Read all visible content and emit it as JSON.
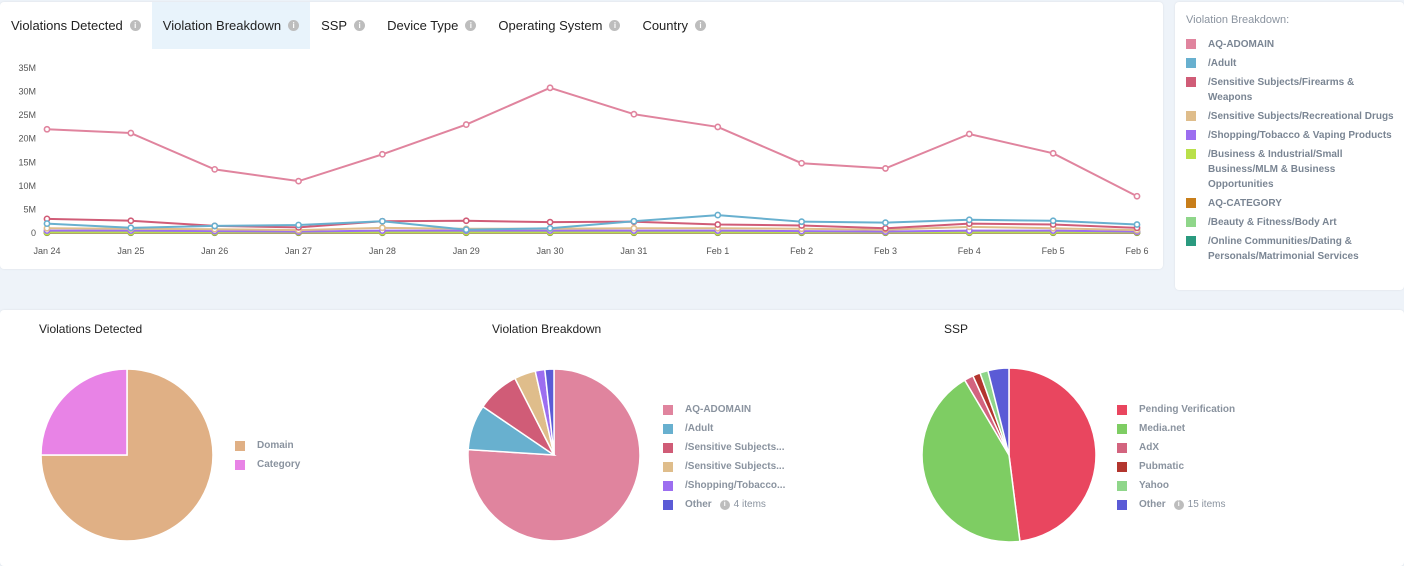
{
  "tabs": [
    {
      "label": "Violations Detected"
    },
    {
      "label": "Violation Breakdown"
    },
    {
      "label": "SSP"
    },
    {
      "label": "Device Type"
    },
    {
      "label": "Operating System"
    },
    {
      "label": "Country"
    }
  ],
  "legend": {
    "title": "Violation Breakdown:",
    "items": [
      {
        "label": "AQ-ADOMAIN",
        "color": "#e0849e"
      },
      {
        "label": "/Adult",
        "color": "#68b0cf"
      },
      {
        "label": "/Sensitive Subjects/Firearms & Weapons",
        "color": "#d05c77"
      },
      {
        "label": "/Sensitive Subjects/Recreational Drugs",
        "color": "#dfbd8b"
      },
      {
        "label": "/Shopping/Tobacco & Vaping Products",
        "color": "#9c6ef0"
      },
      {
        "label": "/Business & Industrial/Small Business/MLM & Business Opportunities",
        "color": "#b9e04a"
      },
      {
        "label": "AQ-CATEGORY",
        "color": "#c87e1a"
      },
      {
        "label": "/Beauty & Fitness/Body Art",
        "color": "#8fd68a"
      },
      {
        "label": "/Online Communities/Dating & Personals/Matrimonial Services",
        "color": "#2a9a7f"
      }
    ]
  },
  "chart_data": [
    {
      "type": "line",
      "x": [
        "Jan 24",
        "Jan 25",
        "Jan 26",
        "Jan 27",
        "Jan 28",
        "Jan 29",
        "Jan 30",
        "Jan 31",
        "Feb 1",
        "Feb 2",
        "Feb 3",
        "Feb 4",
        "Feb 5",
        "Feb 6"
      ],
      "ylim": [
        0,
        35000000
      ],
      "yticks": [
        "0",
        "5M",
        "10M",
        "15M",
        "20M",
        "25M",
        "30M",
        "35M"
      ],
      "grid": false,
      "legend": "right",
      "series": [
        {
          "name": "AQ-ADOMAIN",
          "color": "#e0849e",
          "values": [
            22000000,
            21200000,
            13500000,
            11000000,
            16700000,
            23000000,
            30800000,
            25200000,
            22500000,
            14800000,
            13700000,
            21000000,
            16900000,
            7800000
          ]
        },
        {
          "name": "/Adult",
          "color": "#68b0cf",
          "values": [
            2000000,
            1100000,
            1500000,
            1700000,
            2500000,
            700000,
            1000000,
            2500000,
            3800000,
            2400000,
            2200000,
            2800000,
            2600000,
            1800000
          ]
        },
        {
          "name": "/Sensitive Subjects/Firearms & Weapons",
          "color": "#d05c77",
          "values": [
            3000000,
            2600000,
            1500000,
            1200000,
            2500000,
            2600000,
            2300000,
            2400000,
            1800000,
            1600000,
            1000000,
            2000000,
            1800000,
            1100000
          ]
        },
        {
          "name": "/Sensitive Subjects/Recreational Drugs",
          "color": "#dfbd8b",
          "values": [
            1000000,
            900000,
            800000,
            600000,
            1100000,
            900000,
            900000,
            1000000,
            1000000,
            900000,
            700000,
            1300000,
            1000000,
            600000
          ]
        },
        {
          "name": "/Shopping/Tobacco & Vaping Products",
          "color": "#9c6ef0",
          "values": [
            500000,
            500000,
            400000,
            300000,
            500000,
            500000,
            500000,
            500000,
            500000,
            400000,
            300000,
            500000,
            500000,
            300000
          ]
        },
        {
          "name": "/Business & Industrial/Small Business/MLM & Business Opportunities",
          "color": "#b9e04a",
          "values": [
            200000,
            200000,
            200000,
            200000,
            200000,
            200000,
            200000,
            200000,
            200000,
            200000,
            200000,
            200000,
            200000,
            200000
          ]
        },
        {
          "name": "AQ-CATEGORY",
          "color": "#c87e1a",
          "values": [
            100000,
            100000,
            100000,
            100000,
            100000,
            100000,
            100000,
            100000,
            100000,
            100000,
            100000,
            100000,
            100000,
            100000
          ]
        },
        {
          "name": "/Beauty & Fitness/Body Art",
          "color": "#8fd68a",
          "values": [
            300000,
            300000,
            300000,
            200000,
            300000,
            300000,
            300000,
            300000,
            300000,
            300000,
            200000,
            300000,
            300000,
            200000
          ]
        },
        {
          "name": "/Online Communities/Dating & Personals/Matrimonial Services",
          "color": "#2a9a7f",
          "values": [
            50000,
            50000,
            50000,
            50000,
            50000,
            50000,
            50000,
            50000,
            50000,
            50000,
            50000,
            50000,
            50000,
            50000
          ]
        }
      ]
    },
    {
      "type": "pie",
      "title": "Violations Detected",
      "slices": [
        {
          "label": "Domain",
          "value": 75,
          "color": "#e0b085"
        },
        {
          "label": "Category",
          "value": 25,
          "color": "#e883e6"
        }
      ]
    },
    {
      "type": "pie",
      "title": "Violation Breakdown",
      "slices": [
        {
          "label": "AQ-ADOMAIN",
          "value": 76,
          "color": "#e0849e"
        },
        {
          "label": "/Adult",
          "value": 8.5,
          "color": "#68b0cf"
        },
        {
          "label": "/Sensitive Subjects...",
          "value": 8,
          "color": "#d05c77"
        },
        {
          "label": "/Sensitive Subjects...",
          "value": 4,
          "color": "#dfbd8b"
        },
        {
          "label": "/Shopping/Tobacco...",
          "value": 1.8,
          "color": "#9c6ef0"
        },
        {
          "label": "Other",
          "value": 1.7,
          "color": "#5b5bd6",
          "extra": "4 items"
        }
      ]
    },
    {
      "type": "pie",
      "title": "SSP",
      "slices": [
        {
          "label": "Pending Verification",
          "value": 48,
          "color": "#e9465f"
        },
        {
          "label": "Media.net",
          "value": 43.5,
          "color": "#7ecd63"
        },
        {
          "label": "AdX",
          "value": 1.7,
          "color": "#d3647f"
        },
        {
          "label": "Pubmatic",
          "value": 1.4,
          "color": "#b3352e"
        },
        {
          "label": "Yahoo",
          "value": 1.5,
          "color": "#8fd68a"
        },
        {
          "label": "Other",
          "value": 3.9,
          "color": "#5b5bd6",
          "extra": "15 items"
        }
      ]
    }
  ]
}
